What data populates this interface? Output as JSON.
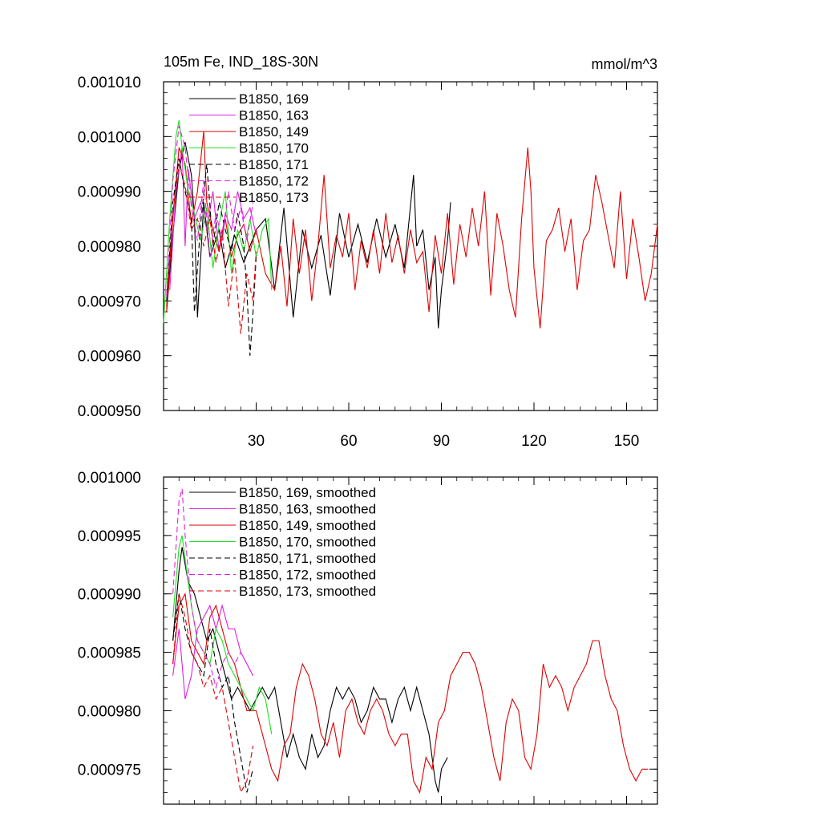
{
  "title_left": "105m Fe, IND_18S-30N",
  "units": "mmol/m^3",
  "chart_data": [
    {
      "type": "line",
      "title": "105m Fe, IND_18S-30N",
      "units_label": "mmol/m^3",
      "xlim": [
        0,
        160
      ],
      "ylim": [
        0.00095,
        0.00101
      ],
      "xticks": [
        30,
        60,
        90,
        120,
        150
      ],
      "xtick_labels": [
        "30",
        "60",
        "90",
        "120",
        "150"
      ],
      "yticks": [
        0.00095,
        0.00096,
        0.00097,
        0.00098,
        0.00099,
        0.001,
        0.00101
      ],
      "ytick_labels": [
        "0.000950",
        "0.000960",
        "0.000970",
        "0.000980",
        "0.000990",
        "0.001000",
        "0.001010"
      ],
      "legend_position": "top-left",
      "series": [
        {
          "name": "B1850, 169",
          "color": "#000000",
          "dash": "solid",
          "x": [
            1,
            3,
            5,
            7,
            9,
            10,
            11,
            13,
            15,
            18,
            20,
            23,
            26,
            30,
            33,
            36,
            39,
            42,
            45,
            48,
            51,
            54,
            57,
            60,
            63,
            66,
            69,
            72,
            75,
            78,
            81,
            82,
            84,
            86,
            88,
            89,
            90,
            92,
            93
          ],
          "y": [
            0.000968,
            0.000982,
            0.000994,
            0.000999,
            0.000993,
            0.000985,
            0.000967,
            0.000988,
            0.000978,
            0.000983,
            0.000976,
            0.000982,
            0.000977,
            0.000983,
            0.000985,
            0.000972,
            0.000987,
            0.000967,
            0.000983,
            0.000976,
            0.000982,
            0.000971,
            0.000986,
            0.000978,
            0.000984,
            0.000977,
            0.000985,
            0.000978,
            0.000984,
            0.000976,
            0.000993,
            0.00098,
            0.000983,
            0.000972,
            0.000978,
            0.000965,
            0.000972,
            0.000981,
            0.000988
          ]
        },
        {
          "name": "B1850, 163",
          "color": "#e020e0",
          "dash": "solid",
          "x": [
            2,
            4,
            6,
            7,
            8,
            10,
            12,
            14,
            16,
            18,
            20,
            22,
            24,
            26,
            28,
            30
          ],
          "y": [
            0.000972,
            0.00099,
            0.000998,
            0.00098,
            0.000994,
            0.000985,
            0.000988,
            0.000983,
            0.00099,
            0.000979,
            0.000986,
            0.000983,
            0.00099,
            0.000985,
            0.000987,
            0.000982
          ]
        },
        {
          "name": "B1850, 149",
          "color": "#e00000",
          "dash": "solid",
          "x": [
            1,
            3,
            5,
            7,
            9,
            11,
            13,
            14,
            16,
            18,
            20,
            22,
            24,
            26,
            28,
            30,
            33,
            36,
            38,
            40,
            42,
            44,
            46,
            48,
            50,
            52,
            54,
            56,
            58,
            60,
            62,
            64,
            66,
            68,
            70,
            72,
            74,
            76,
            78,
            80,
            82,
            84,
            86,
            88,
            90,
            92,
            94,
            96,
            98,
            100,
            102,
            104,
            106,
            108,
            110,
            112,
            114,
            116,
            118,
            119,
            120,
            122,
            124,
            126,
            128,
            130,
            132,
            134,
            136,
            138,
            140,
            142,
            144,
            146,
            148,
            150,
            152,
            154,
            156,
            158,
            160
          ],
          "y": [
            0.000968,
            0.000985,
            0.000998,
            0.000995,
            0.000984,
            0.00099,
            0.001001,
            0.000988,
            0.000983,
            0.000979,
            0.000985,
            0.000978,
            0.000982,
            0.000984,
            0.000979,
            0.000983,
            0.000975,
            0.000972,
            0.00098,
            0.000969,
            0.000985,
            0.000975,
            0.000983,
            0.00097,
            0.00098,
            0.000993,
            0.000976,
            0.000982,
            0.000978,
            0.000986,
            0.000972,
            0.000981,
            0.000976,
            0.000983,
            0.000975,
            0.000986,
            0.000977,
            0.000982,
            0.000975,
            0.000983,
            0.000977,
            0.000979,
            0.000968,
            0.000982,
            0.000975,
            0.000986,
            0.000973,
            0.000984,
            0.000978,
            0.000987,
            0.00098,
            0.00099,
            0.000971,
            0.000986,
            0.00098,
            0.000972,
            0.000967,
            0.000985,
            0.000998,
            0.00099,
            0.000976,
            0.000965,
            0.000981,
            0.000983,
            0.000987,
            0.000979,
            0.000985,
            0.000972,
            0.000981,
            0.000983,
            0.000993,
            0.000988,
            0.000982,
            0.000976,
            0.00099,
            0.000974,
            0.000985,
            0.000978,
            0.00097,
            0.000975,
            0.000984
          ]
        },
        {
          "name": "B1850, 170",
          "color": "#20e020",
          "dash": "solid",
          "x": [
            0,
            2,
            4,
            5,
            6,
            8,
            10,
            12,
            14,
            16,
            18,
            20,
            22,
            24,
            26,
            28,
            30,
            32,
            34,
            35
          ],
          "y": [
            0.000966,
            0.000985,
            0.001,
            0.001003,
            0.000998,
            0.00099,
            0.000986,
            0.000981,
            0.000987,
            0.000976,
            0.000984,
            0.00099,
            0.000975,
            0.000983,
            0.000979,
            0.000985,
            0.000978,
            0.000983,
            0.000985,
            0.000972
          ]
        },
        {
          "name": "B1850, 171",
          "color": "#000000",
          "dash": "dashed",
          "x": [
            1,
            3,
            5,
            7,
            9,
            10,
            12,
            14,
            16,
            18,
            20,
            22,
            24,
            26,
            27,
            28,
            29,
            30
          ],
          "y": [
            0.00097,
            0.000988,
            0.000996,
            0.00099,
            0.000985,
            0.000968,
            0.000984,
            0.000995,
            0.00098,
            0.000988,
            0.000983,
            0.000979,
            0.000986,
            0.00098,
            0.000972,
            0.00096,
            0.000968,
            0.000978
          ]
        },
        {
          "name": "B1850, 172",
          "color": "#e020e0",
          "dash": "dashed",
          "x": [
            1,
            3,
            5,
            7,
            9,
            11,
            13,
            15,
            17,
            19,
            21,
            23,
            25,
            27,
            29
          ],
          "y": [
            0.000971,
            0.000992,
            0.001002,
            0.000998,
            0.000987,
            0.000981,
            0.000992,
            0.000978,
            0.000986,
            0.000981,
            0.00099,
            0.000983,
            0.000987,
            0.000981,
            0.000988
          ]
        },
        {
          "name": "B1850, 173",
          "color": "#e00000",
          "dash": "dashed",
          "x": [
            1,
            3,
            5,
            7,
            9,
            11,
            13,
            15,
            17,
            19,
            21,
            23,
            25,
            27,
            29,
            30
          ],
          "y": [
            0.000969,
            0.000986,
            0.000995,
            0.000991,
            0.000983,
            0.000985,
            0.00098,
            0.000985,
            0.000977,
            0.000983,
            0.000969,
            0.000978,
            0.000964,
            0.000975,
            0.00097,
            0.000979
          ]
        }
      ]
    },
    {
      "type": "line",
      "xlim": [
        0,
        160
      ],
      "ylim": [
        0.000972,
        0.001
      ],
      "xticks": [
        30,
        60,
        90,
        120,
        150
      ],
      "xtick_labels": [],
      "yticks": [
        0.000975,
        0.00098,
        0.000985,
        0.00099,
        0.000995,
        0.001
      ],
      "ytick_labels": [
        "0.000975",
        "0.000980",
        "0.000985",
        "0.000990",
        "0.000995",
        "0.001000"
      ],
      "legend_position": "top-left",
      "series": [
        {
          "name": "B1850, 169, smoothed",
          "color": "#000000",
          "dash": "solid",
          "x": [
            3,
            5,
            6,
            8,
            10,
            12,
            14,
            16,
            18,
            20,
            22,
            24,
            26,
            28,
            30,
            32,
            34,
            36,
            38,
            40,
            42,
            44,
            46,
            48,
            50,
            52,
            54,
            56,
            58,
            60,
            62,
            64,
            66,
            68,
            70,
            72,
            74,
            76,
            78,
            80,
            82,
            84,
            86,
            88,
            89,
            90,
            92
          ],
          "y": [
            0.000986,
            0.000992,
            0.000994,
            0.000991,
            0.00099,
            0.000988,
            0.000986,
            0.000987,
            0.000985,
            0.000983,
            0.000981,
            0.000982,
            0.000981,
            0.00098,
            0.000981,
            0.000982,
            0.000981,
            0.000982,
            0.000979,
            0.000976,
            0.000978,
            0.000976,
            0.000975,
            0.000978,
            0.000976,
            0.000977,
            0.00098,
            0.000982,
            0.000981,
            0.000982,
            0.000981,
            0.000979,
            0.00098,
            0.000982,
            0.000981,
            0.000981,
            0.000979,
            0.000981,
            0.000982,
            0.00098,
            0.000982,
            0.00098,
            0.000978,
            0.000974,
            0.000973,
            0.000975,
            0.000976
          ]
        },
        {
          "name": "B1850, 163, smoothed",
          "color": "#e020e0",
          "dash": "solid",
          "x": [
            3,
            5,
            7,
            9,
            11,
            13,
            15,
            17,
            19,
            21,
            23,
            25,
            27,
            29
          ],
          "y": [
            0.000983,
            0.000987,
            0.000981,
            0.000983,
            0.000987,
            0.000988,
            0.000989,
            0.000987,
            0.000989,
            0.000987,
            0.000987,
            0.000985,
            0.000984,
            0.000983
          ]
        },
        {
          "name": "B1850, 149, smoothed",
          "color": "#e00000",
          "dash": "solid",
          "x": [
            3,
            5,
            7,
            9,
            11,
            13,
            15,
            17,
            19,
            21,
            23,
            25,
            27,
            30,
            33,
            35,
            37,
            39,
            41,
            43,
            45,
            47,
            49,
            51,
            53,
            55,
            57,
            59,
            61,
            63,
            65,
            67,
            69,
            71,
            73,
            75,
            77,
            79,
            81,
            83,
            85,
            87,
            89,
            91,
            93,
            95,
            97,
            99,
            101,
            103,
            105,
            107,
            109,
            111,
            113,
            115,
            117,
            119,
            121,
            123,
            125,
            127,
            129,
            131,
            133,
            135,
            137,
            139,
            141,
            143,
            145,
            147,
            149,
            151,
            153,
            155,
            157
          ],
          "y": [
            0.000984,
            0.000989,
            0.00099,
            0.000986,
            0.000985,
            0.000984,
            0.000988,
            0.000989,
            0.000987,
            0.000985,
            0.000984,
            0.000982,
            0.00098,
            0.00098,
            0.000977,
            0.000975,
            0.000974,
            0.000977,
            0.000978,
            0.000982,
            0.000984,
            0.000983,
            0.000981,
            0.000978,
            0.000977,
            0.000979,
            0.000976,
            0.00098,
            0.000981,
            0.000979,
            0.000978,
            0.00098,
            0.000981,
            0.00098,
            0.000978,
            0.000977,
            0.000978,
            0.000978,
            0.000974,
            0.000973,
            0.000976,
            0.000975,
            0.000979,
            0.00098,
            0.000983,
            0.000984,
            0.000985,
            0.000985,
            0.000984,
            0.000982,
            0.000979,
            0.000976,
            0.000974,
            0.000979,
            0.000981,
            0.00098,
            0.000976,
            0.000975,
            0.000978,
            0.000984,
            0.000982,
            0.000983,
            0.000982,
            0.00098,
            0.000982,
            0.000983,
            0.000984,
            0.000986,
            0.000986,
            0.000983,
            0.000981,
            0.00098,
            0.000977,
            0.000975,
            0.000974,
            0.000975,
            0.000975
          ]
        },
        {
          "name": "B1850, 170, smoothed",
          "color": "#20e020",
          "dash": "solid",
          "x": [
            3,
            5,
            6,
            7,
            9,
            11,
            13,
            15,
            17,
            19,
            21,
            23,
            25,
            27,
            29,
            31,
            33,
            35
          ],
          "y": [
            0.000988,
            0.000994,
            0.000995,
            0.000993,
            0.000989,
            0.000986,
            0.000985,
            0.000984,
            0.000987,
            0.000986,
            0.000984,
            0.000983,
            0.000982,
            0.000981,
            0.00098,
            0.000982,
            0.000981,
            0.000978
          ]
        },
        {
          "name": "B1850, 171, smoothed",
          "color": "#000000",
          "dash": "dashed",
          "x": [
            3,
            5,
            7,
            9,
            11,
            13,
            15,
            17,
            19,
            21,
            23,
            25,
            27,
            29
          ],
          "y": [
            0.000986,
            0.00099,
            0.000987,
            0.000985,
            0.000984,
            0.000983,
            0.000987,
            0.000984,
            0.000982,
            0.000983,
            0.000979,
            0.000976,
            0.000973,
            0.000975
          ]
        },
        {
          "name": "B1850, 172, smoothed",
          "color": "#e020e0",
          "dash": "dashed",
          "x": [
            3,
            5,
            6,
            7,
            9,
            11,
            13,
            15,
            17,
            19,
            21,
            23,
            25,
            27,
            29
          ],
          "y": [
            0.00099,
            0.000998,
            0.000999,
            0.000995,
            0.000989,
            0.000986,
            0.000985,
            0.000984,
            0.000982,
            0.000984,
            0.000985,
            0.000984,
            0.000985,
            0.000984,
            0.000983
          ]
        },
        {
          "name": "B1850, 173, smoothed",
          "color": "#e00000",
          "dash": "dashed",
          "x": [
            3,
            5,
            7,
            9,
            11,
            13,
            15,
            17,
            19,
            21,
            23,
            25,
            27,
            29
          ],
          "y": [
            0.000984,
            0.00099,
            0.000988,
            0.000985,
            0.000984,
            0.000982,
            0.000983,
            0.000981,
            0.000982,
            0.000979,
            0.000976,
            0.000973,
            0.000974,
            0.000977
          ]
        }
      ]
    }
  ]
}
